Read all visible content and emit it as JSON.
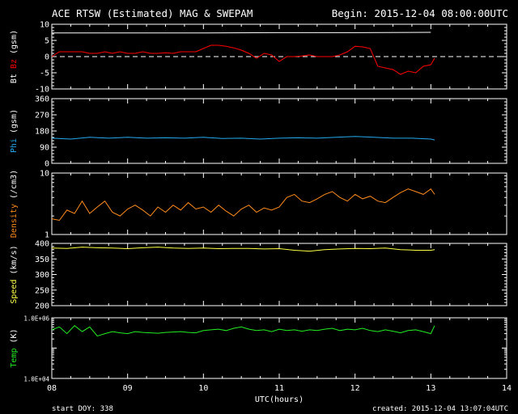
{
  "header": {
    "title": "ACE RTSW (Estimated) MAG & SWEPAM",
    "begin": "Begin: 2015-12-04 08:00:00UTC"
  },
  "footer": {
    "start_doy": "start DOY: 338",
    "created": "created: 2015-12-04 13:07:04UTC"
  },
  "colors": {
    "bt": "#ffffff",
    "bz": "#ff0000",
    "phi": "#22aaee",
    "density": "#ff8c1a",
    "speed": "#ffff44",
    "temp": "#22ee22",
    "axes": "#ffffff",
    "background": "#000000"
  },
  "chart_data": [
    {
      "type": "line",
      "panel": "mag",
      "ylabel_parts": [
        {
          "text": "Bt",
          "color": "#ffffff"
        },
        {
          "text": "Bz",
          "color": "#ff0000"
        },
        {
          "text": "(gsm)",
          "color": "#ffffff"
        }
      ],
      "ylim": [
        -10,
        10
      ],
      "yticks": [
        -10,
        -5,
        0,
        5,
        10
      ],
      "yticklabels": [
        "-10",
        "-5",
        "0",
        "5",
        "10"
      ],
      "zero_line": "dashed",
      "series": [
        {
          "name": "Bt",
          "color": "#ffffff",
          "x": [
            8.0,
            9.0,
            10.0,
            11.0,
            12.0,
            13.0
          ],
          "y": [
            7.3,
            7.3,
            7.3,
            7.4,
            7.4,
            7.5
          ]
        },
        {
          "name": "Bz",
          "color": "#ff0000",
          "x": [
            8.0,
            8.1,
            8.2,
            8.3,
            8.4,
            8.5,
            8.6,
            8.7,
            8.8,
            8.9,
            9.0,
            9.1,
            9.2,
            9.3,
            9.4,
            9.5,
            9.6,
            9.7,
            9.8,
            9.9,
            10.0,
            10.1,
            10.2,
            10.3,
            10.4,
            10.5,
            10.6,
            10.7,
            10.8,
            10.9,
            11.0,
            11.1,
            11.2,
            11.3,
            11.4,
            11.5,
            11.6,
            11.7,
            11.8,
            11.9,
            12.0,
            12.1,
            12.2,
            12.3,
            12.4,
            12.5,
            12.6,
            12.7,
            12.8,
            12.9,
            13.0,
            13.05
          ],
          "y": [
            0,
            1.5,
            1.5,
            1.5,
            1.5,
            1,
            1,
            1.5,
            1,
            1.5,
            1,
            1,
            1.5,
            1,
            1,
            1.2,
            1,
            1.5,
            1.5,
            1.5,
            2.5,
            3.5,
            3.5,
            3.2,
            2.7,
            2,
            1,
            -0.5,
            1,
            0.5,
            -1.5,
            0,
            0,
            0.2,
            0.5,
            0,
            0,
            0,
            0.5,
            1.5,
            3.2,
            3,
            2.5,
            -3,
            -3.5,
            -4,
            -5.5,
            -4.5,
            -5,
            -3,
            -2.5,
            -0.5
          ]
        }
      ]
    },
    {
      "type": "line",
      "panel": "phi",
      "ylabel_parts": [
        {
          "text": "Phi",
          "color": "#22aaee"
        },
        {
          "text": "(gsm)",
          "color": "#ffffff"
        }
      ],
      "ylim": [
        0,
        360
      ],
      "yticks": [
        0,
        90,
        180,
        270,
        360
      ],
      "yticklabels": [
        "0",
        "90",
        "180",
        "270",
        "360"
      ],
      "series": [
        {
          "name": "Phi",
          "color": "#22aaee",
          "x": [
            8.0,
            8.25,
            8.5,
            8.75,
            9.0,
            9.25,
            9.5,
            9.75,
            10.0,
            10.25,
            10.5,
            10.75,
            11.0,
            11.25,
            11.5,
            11.75,
            12.0,
            12.25,
            12.5,
            12.75,
            13.0,
            13.05
          ],
          "y": [
            140,
            135,
            145,
            140,
            145,
            140,
            142,
            140,
            145,
            138,
            140,
            135,
            140,
            142,
            140,
            145,
            150,
            145,
            140,
            140,
            135,
            130
          ]
        }
      ]
    },
    {
      "type": "line",
      "panel": "density",
      "ylabel_parts": [
        {
          "text": "Density",
          "color": "#ff8c1a"
        },
        {
          "text": "(/cm3)",
          "color": "#ffffff"
        }
      ],
      "yscale": "log",
      "ylim": [
        1,
        10
      ],
      "yticks": [
        1,
        10
      ],
      "yticklabels": [
        "1",
        "10"
      ],
      "series": [
        {
          "name": "Density",
          "color": "#ff8c1a",
          "x": [
            8.0,
            8.1,
            8.2,
            8.3,
            8.4,
            8.5,
            8.6,
            8.7,
            8.8,
            8.9,
            9.0,
            9.1,
            9.2,
            9.3,
            9.4,
            9.5,
            9.6,
            9.7,
            9.8,
            9.9,
            10.0,
            10.1,
            10.2,
            10.3,
            10.4,
            10.5,
            10.6,
            10.7,
            10.8,
            10.9,
            11.0,
            11.1,
            11.2,
            11.3,
            11.4,
            11.5,
            11.6,
            11.7,
            11.8,
            11.9,
            12.0,
            12.1,
            12.2,
            12.3,
            12.4,
            12.5,
            12.6,
            12.7,
            12.8,
            12.9,
            13.0,
            13.05
          ],
          "y": [
            1.8,
            1.7,
            2.5,
            2.2,
            3.5,
            2.2,
            2.8,
            3.5,
            2.3,
            2.0,
            2.6,
            3.0,
            2.5,
            2.0,
            2.8,
            2.3,
            3.0,
            2.5,
            3.3,
            2.6,
            2.8,
            2.3,
            3.0,
            2.4,
            2.0,
            2.6,
            3.0,
            2.3,
            2.7,
            2.5,
            2.8,
            4.0,
            4.5,
            3.5,
            3.3,
            3.8,
            4.5,
            5.0,
            4.0,
            3.5,
            4.5,
            3.8,
            4.2,
            3.5,
            3.3,
            4.0,
            4.8,
            5.5,
            5.0,
            4.5,
            5.5,
            4.5
          ]
        }
      ]
    },
    {
      "type": "line",
      "panel": "speed",
      "ylabel_parts": [
        {
          "text": "Speed",
          "color": "#ffff44"
        },
        {
          "text": "(km/s)",
          "color": "#ffffff"
        }
      ],
      "ylim": [
        200,
        400
      ],
      "yticks": [
        200,
        250,
        300,
        350,
        400
      ],
      "yticklabels": [
        "200",
        "250",
        "300",
        "350",
        "400"
      ],
      "series": [
        {
          "name": "Speed",
          "color": "#ffff44",
          "x": [
            8.0,
            8.2,
            8.4,
            8.6,
            8.8,
            9.0,
            9.2,
            9.4,
            9.6,
            9.8,
            10.0,
            10.2,
            10.4,
            10.6,
            10.8,
            11.0,
            11.2,
            11.4,
            11.6,
            11.8,
            12.0,
            12.2,
            12.4,
            12.6,
            12.8,
            13.0,
            13.05
          ],
          "y": [
            385,
            384,
            388,
            386,
            385,
            383,
            386,
            388,
            385,
            384,
            385,
            383,
            384,
            384,
            382,
            383,
            378,
            375,
            380,
            382,
            384,
            383,
            385,
            380,
            378,
            378,
            380
          ]
        }
      ]
    },
    {
      "type": "line",
      "panel": "temp",
      "ylabel_parts": [
        {
          "text": "Temp",
          "color": "#22ee22"
        },
        {
          "text": "(K)",
          "color": "#ffffff"
        }
      ],
      "yscale": "log",
      "ylim": [
        10000,
        1000000
      ],
      "yticks": [
        10000,
        1000000
      ],
      "yticklabels": [
        "1.0E+04",
        "1.0E+06"
      ],
      "series": [
        {
          "name": "Temp",
          "color": "#22ee22",
          "x": [
            8.0,
            8.1,
            8.2,
            8.3,
            8.4,
            8.5,
            8.6,
            8.7,
            8.8,
            8.9,
            9.0,
            9.1,
            9.2,
            9.3,
            9.4,
            9.5,
            9.6,
            9.7,
            9.8,
            9.9,
            10.0,
            10.1,
            10.2,
            10.3,
            10.4,
            10.5,
            10.6,
            10.7,
            10.8,
            10.9,
            11.0,
            11.1,
            11.2,
            11.3,
            11.4,
            11.5,
            11.6,
            11.7,
            11.8,
            11.9,
            12.0,
            12.1,
            12.2,
            12.3,
            12.4,
            12.5,
            12.6,
            12.7,
            12.8,
            12.9,
            13.0,
            13.05
          ],
          "y": [
            400000,
            500000,
            300000,
            550000,
            350000,
            500000,
            250000,
            300000,
            350000,
            320000,
            300000,
            350000,
            330000,
            320000,
            310000,
            330000,
            340000,
            350000,
            330000,
            320000,
            380000,
            400000,
            420000,
            380000,
            450000,
            500000,
            420000,
            380000,
            400000,
            350000,
            420000,
            380000,
            400000,
            360000,
            400000,
            380000,
            420000,
            450000,
            380000,
            420000,
            400000,
            450000,
            380000,
            350000,
            400000,
            360000,
            320000,
            380000,
            400000,
            350000,
            300000,
            550000
          ]
        }
      ]
    }
  ],
  "xaxis": {
    "ticks": [
      8,
      9,
      10,
      11,
      12,
      13,
      14
    ],
    "ticklabels": [
      "08",
      "09",
      "10",
      "11",
      "12",
      "13",
      "14"
    ],
    "xlabel": "UTC(hours)",
    "xlim": [
      8,
      14
    ]
  }
}
